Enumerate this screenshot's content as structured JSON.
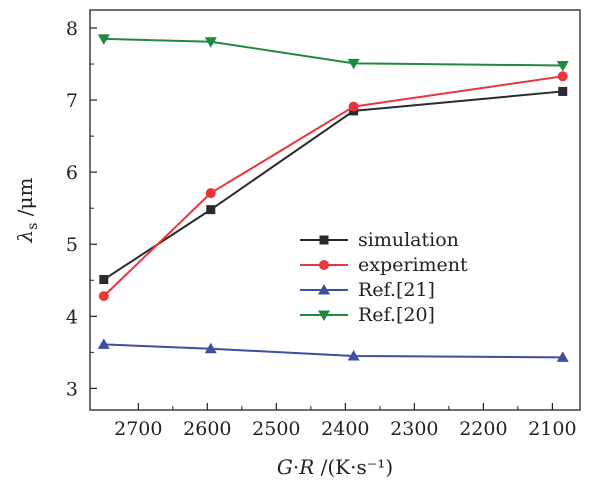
{
  "chart_data": {
    "type": "line",
    "title": "",
    "xlabel": "G·R /(K·s⁻¹)",
    "xlabel_parts": {
      "g": "G",
      "dot": "·",
      "r": "R",
      "unit": " /(K·s⁻¹)"
    },
    "ylabel": "λs /μm",
    "ylabel_parts": {
      "lambda": "λ",
      "sub": "s",
      "unit": " /μm"
    },
    "xlim": [
      2770,
      2060
    ],
    "ylim": [
      2.7,
      8.25
    ],
    "x_reversed": true,
    "xticks": [
      2700,
      2600,
      2500,
      2400,
      2300,
      2200,
      2100
    ],
    "yticks": [
      3,
      4,
      5,
      6,
      7,
      8
    ],
    "grid": false,
    "legend_position": "center-right",
    "series": [
      {
        "name": "simulation",
        "color": "#2b2b2b",
        "marker": "square",
        "x": [
          2750,
          2595,
          2388,
          2085
        ],
        "y": [
          4.51,
          5.48,
          6.85,
          7.12
        ]
      },
      {
        "name": "experiment",
        "color": "#e8363b",
        "marker": "circle",
        "x": [
          2750,
          2595,
          2388,
          2085
        ],
        "y": [
          4.28,
          5.71,
          6.91,
          7.33
        ]
      },
      {
        "name": "Ref.[21]",
        "color": "#3f4fa0",
        "marker": "triangle-up",
        "x": [
          2750,
          2595,
          2388,
          2085
        ],
        "y": [
          3.61,
          3.55,
          3.45,
          3.43
        ]
      },
      {
        "name": "Ref.[20]",
        "color": "#1f8a3e",
        "marker": "triangle-down",
        "x": [
          2750,
          2595,
          2388,
          2085
        ],
        "y": [
          7.85,
          7.81,
          7.51,
          7.48
        ]
      }
    ]
  }
}
